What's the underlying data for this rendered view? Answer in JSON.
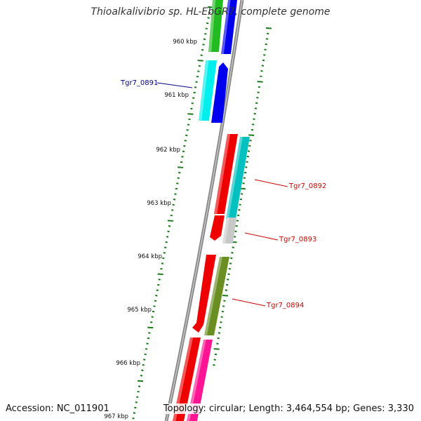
{
  "title": "Thioalkalivibrio sp. HL-EbGR7, complete genome",
  "footer": {
    "accession": "Accession: NC_011901",
    "summary": "Topology: circular; Length: 3,464,554 bp; Genes: 3,330"
  },
  "scale": {
    "unit": "kbp",
    "labels": [
      "960 kbp",
      "961 kbp",
      "962 kbp",
      "963 kbp",
      "964 kbp",
      "965 kbp",
      "966 kbp",
      "967 kbp"
    ]
  },
  "gene_labels": [
    {
      "name": "Tgr7_0891",
      "color": "#00008b"
    },
    {
      "name": "Tgr7_0892",
      "color": "#cc0000"
    },
    {
      "name": "Tgr7_0893",
      "color": "#cc0000"
    },
    {
      "name": "Tgr7_0894",
      "color": "#cc0000"
    }
  ],
  "colors": {
    "backbone": "#8a8a8a",
    "tick": "#1a7a1a",
    "green": "#22bb22",
    "blue": "#0000ee",
    "cyan": "#00eeee",
    "red": "#ee0000",
    "teal": "#00c0c0",
    "gray": "#c8c8c8",
    "olive": "#6b8e23",
    "magenta": "#ff1493"
  }
}
